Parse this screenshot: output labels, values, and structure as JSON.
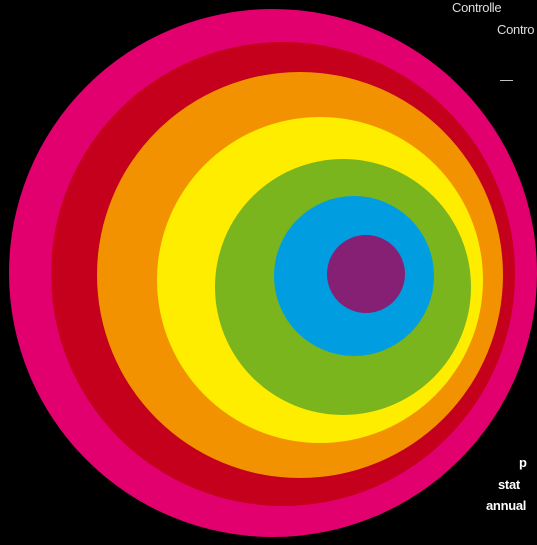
{
  "top_text": [
    "Controlle",
    "Contro",
    "—"
  ],
  "bottom_text": [
    "p",
    "stat",
    "annual"
  ]
}
